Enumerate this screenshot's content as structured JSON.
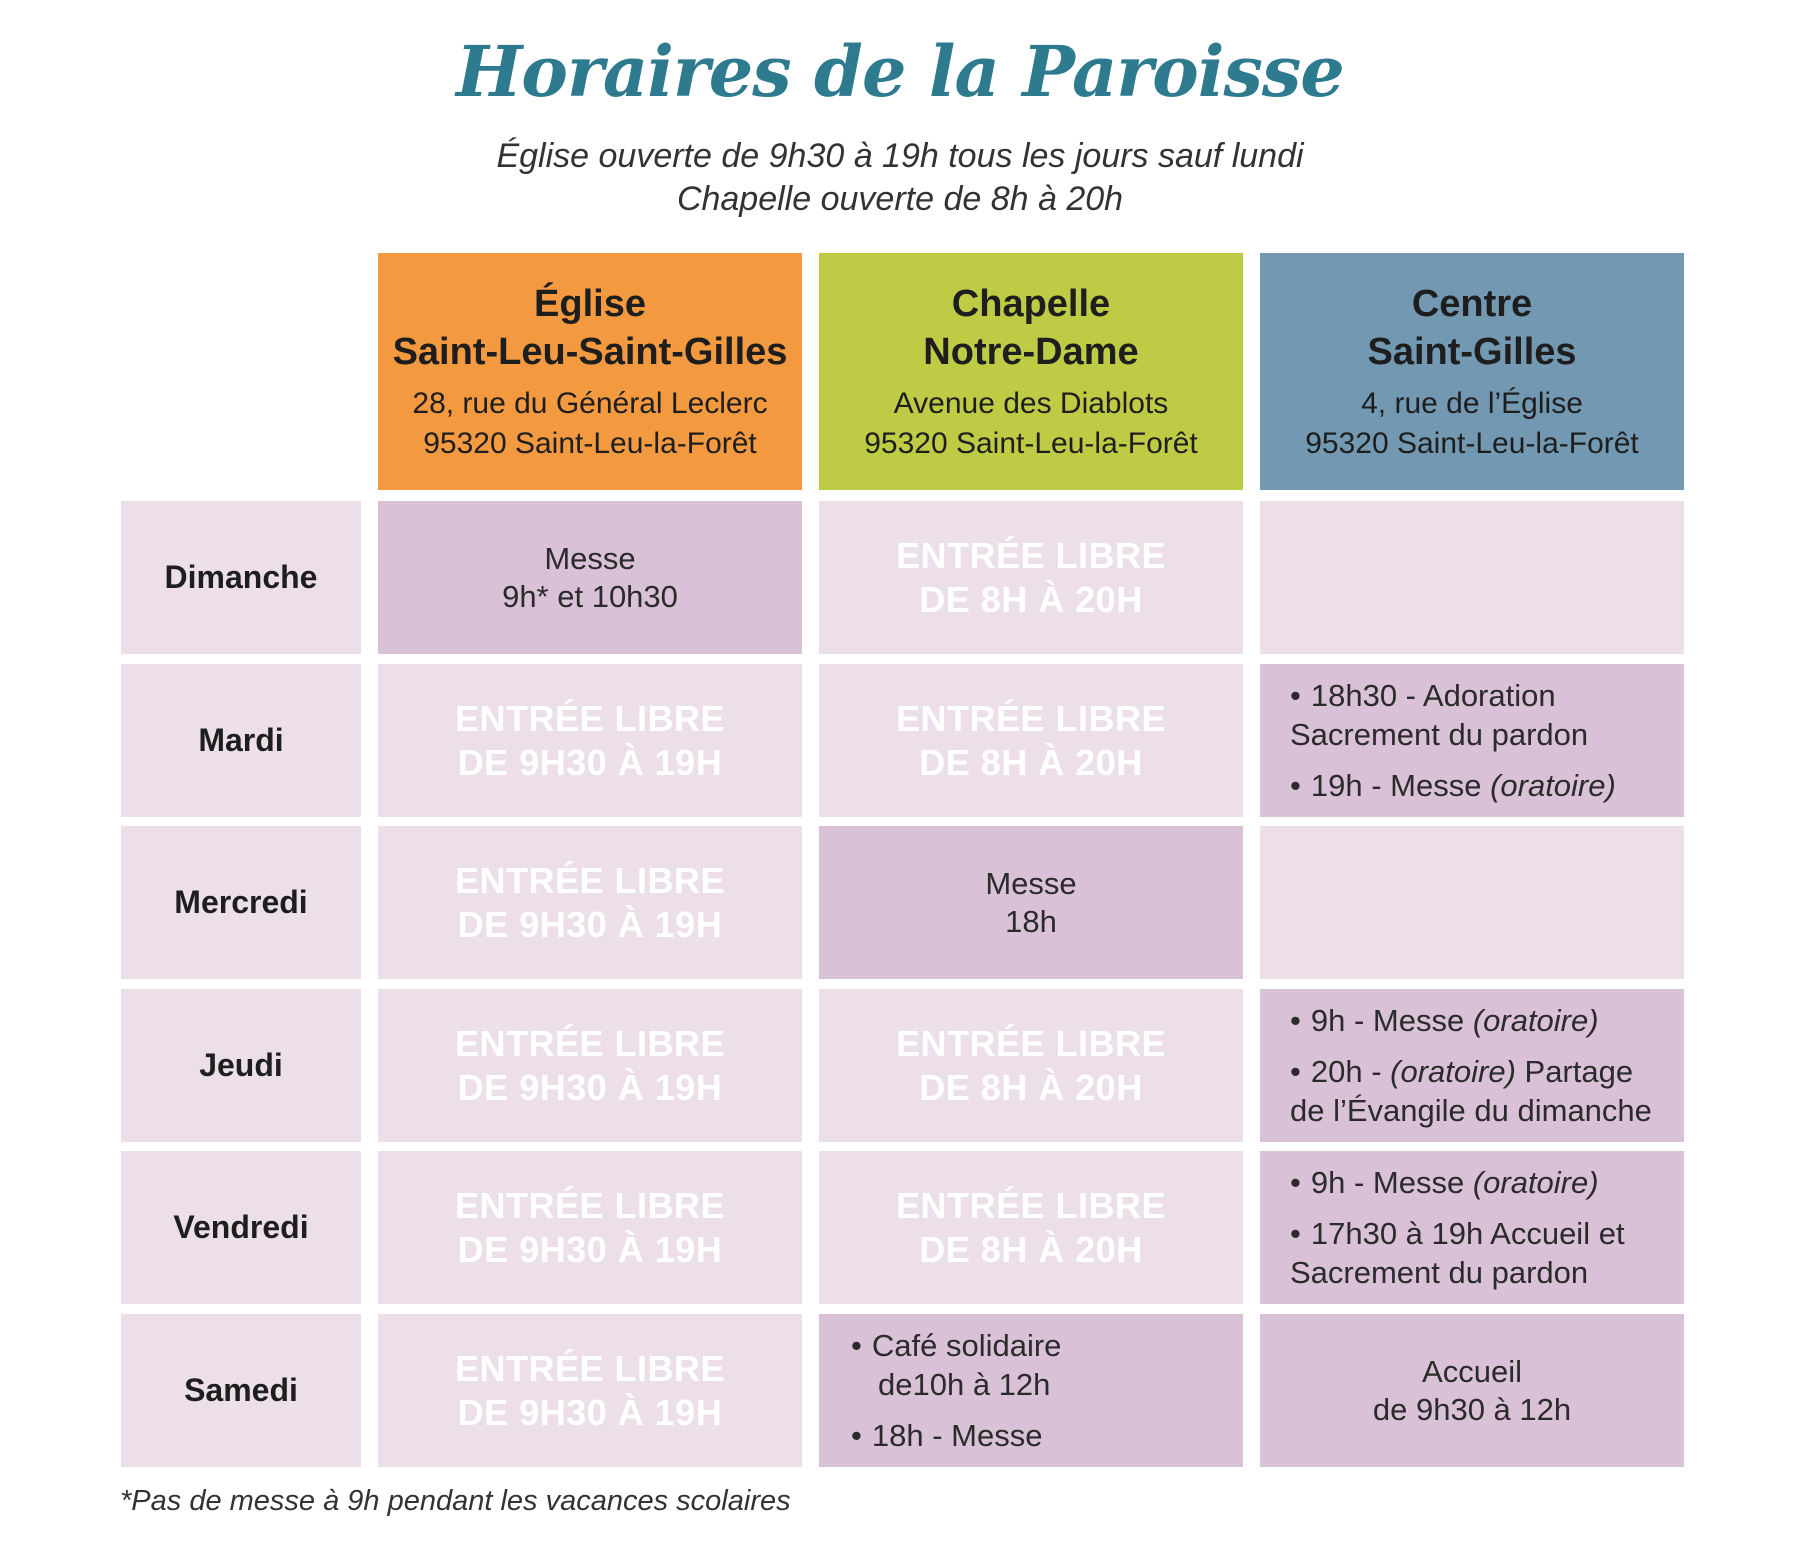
{
  "title": "Horaires de la Paroisse",
  "subtitle_line1": "Église ouverte de 9h30 à 19h tous les jours sauf lundi",
  "subtitle_line2": "Chapelle ouverte de 8h à 20h",
  "colors": {
    "title": "#2e7a8f",
    "eglise": "#f39a41",
    "chapelle": "#bfca45",
    "centre": "#7299b1",
    "cell_light": "#eddfea",
    "cell_dark": "#d9c1d7"
  },
  "columns": [
    {
      "name1": "Église",
      "name2": "Saint-Leu-Saint-Gilles",
      "addr1": "28, rue du Général Leclerc",
      "addr2": "95320 Saint-Leu-la-Forêt"
    },
    {
      "name1": "Chapelle",
      "name2": "Notre-Dame",
      "addr1": "Avenue des Diablots",
      "addr2": "95320 Saint-Leu-la-Forêt"
    },
    {
      "name1": "Centre",
      "name2": "Saint-Gilles",
      "addr1": "4, rue de l’Église",
      "addr2": "95320 Saint-Leu-la-Forêt"
    }
  ],
  "days": [
    "Dimanche",
    "Mardi",
    "Mercredi",
    "Jeudi",
    "Vendredi",
    "Samedi"
  ],
  "libre_eglise": [
    "Entrée libre",
    "de 9h30 à 19h"
  ],
  "libre_chapelle": [
    "Entrée libre",
    "de 8h à 20h"
  ],
  "dimanche": {
    "eglise_line1": "Messe",
    "eglise_line2": "9h* et 10h30"
  },
  "mardi": {
    "centre_item1_line1": "18h30 - Adoration",
    "centre_item1_line2": "Sacrement du pardon",
    "centre_item2_a": "19h - Messe ",
    "centre_item2_b": "(oratoire)"
  },
  "mercredi": {
    "chapelle_line1": "Messe",
    "chapelle_line2": "18h"
  },
  "jeudi": {
    "centre_item1_a": "9h - Messe ",
    "centre_item1_b": "(oratoire)",
    "centre_item2_a": "20h - ",
    "centre_item2_b": "(oratoire)",
    "centre_item2_c": " Partage",
    "centre_item2_line2": "de l’Évangile du dimanche"
  },
  "vendredi": {
    "centre_item1_a": "9h - Messe ",
    "centre_item1_b": "(oratoire)",
    "centre_item2_line1": "17h30 à 19h Accueil et",
    "centre_item2_line2": "Sacrement du pardon"
  },
  "samedi": {
    "chapelle_item1_line1": "Café solidaire",
    "chapelle_item1_line2": "de10h à 12h",
    "chapelle_item2": "18h - Messe",
    "centre_line1": "Accueil",
    "centre_line2": "de 9h30 à 12h"
  },
  "bullet": "•",
  "footnote": "*Pas de messe à 9h pendant les vacances scolaires"
}
